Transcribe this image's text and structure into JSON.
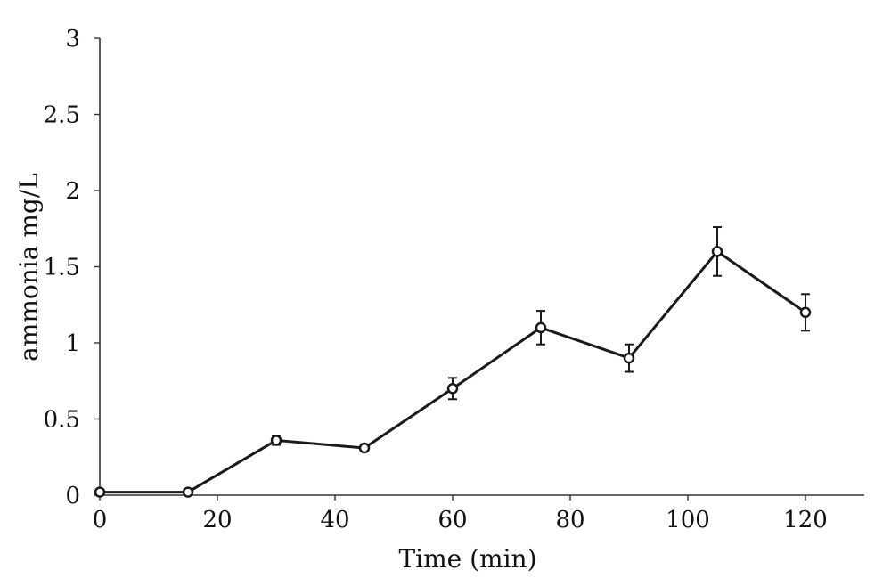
{
  "chart_data": {
    "type": "line",
    "xlabel": "Time (min)",
    "ylabel": "ammonia mg/L",
    "xlim": [
      0,
      130
    ],
    "ylim": [
      0,
      3
    ],
    "xticks": [
      0,
      20,
      40,
      60,
      80,
      100,
      120
    ],
    "xtick_labels": [
      "0",
      "20",
      "40",
      "60",
      "80",
      "100",
      "120"
    ],
    "yticks": [
      0,
      0.5,
      1,
      1.5,
      2,
      2.5,
      3
    ],
    "ytick_labels": [
      "0",
      "0.5",
      "1",
      "1.5",
      "2",
      "2.5",
      "3"
    ],
    "grid": false,
    "series": [
      {
        "x": [
          0,
          15,
          30,
          45,
          60,
          75,
          90,
          105,
          120
        ],
        "y": [
          0.02,
          0.02,
          0.36,
          0.31,
          0.7,
          1.1,
          0.9,
          1.6,
          1.2
        ],
        "error": [
          0,
          0,
          0.03,
          0.02,
          0.07,
          0.11,
          0.09,
          0.16,
          0.12
        ]
      }
    ],
    "colors": {
      "line": "#1a1a1a",
      "marker_fill": "#ffffff",
      "axis": "#333333"
    }
  }
}
